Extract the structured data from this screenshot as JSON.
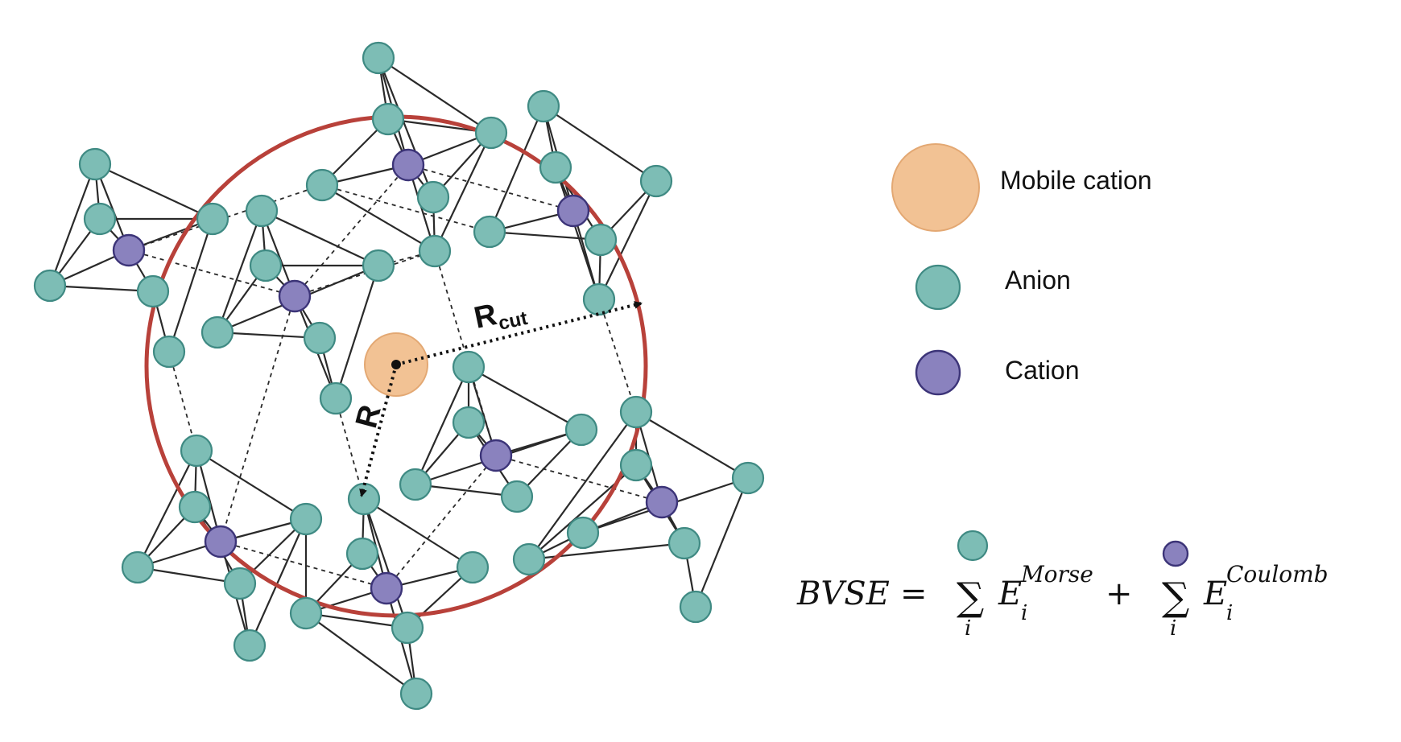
{
  "legend": {
    "mobile_cation": "Mobile cation",
    "anion": "Anion",
    "cation": "Cation"
  },
  "labels": {
    "r": "R",
    "rcut_main": "R",
    "rcut_sub": "cut"
  },
  "equation": {
    "lhs": "BVSE",
    "eq": "=",
    "sum1_sym": "∑",
    "sum1_idx": "i",
    "term1_base": "E",
    "term1_sup": "Morse",
    "term1_sub": "i",
    "plus": "+",
    "sum2_sym": "∑",
    "sum2_idx": "i",
    "term2_base": "E",
    "term2_sup": "Coulomb",
    "term2_sub": "i"
  },
  "colors": {
    "anion_fill": "#7dbdb5",
    "cation_fill": "#8a82be",
    "mobile_fill": "#f2c294",
    "cutoff_circle": "#b8413a"
  }
}
